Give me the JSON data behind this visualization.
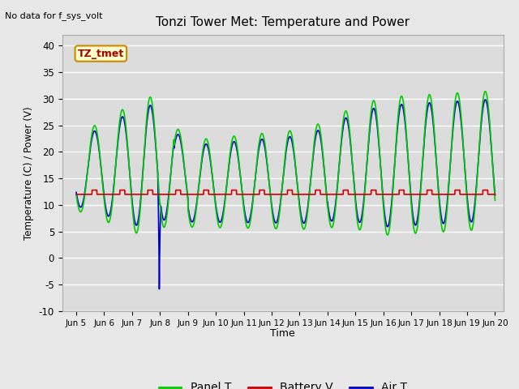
{
  "title": "Tonzi Tower Met: Temperature and Power",
  "ylabel": "Temperature (C) / Power (V)",
  "xlabel": "Time",
  "no_data_text": "No data for f_sys_volt",
  "annotation_text": "TZ_tmet",
  "ylim": [
    -10,
    42
  ],
  "xlim": [
    4.5,
    20.3
  ],
  "xticks": [
    5,
    6,
    7,
    8,
    9,
    10,
    11,
    12,
    13,
    14,
    15,
    16,
    17,
    18,
    19,
    20
  ],
  "xticklabels": [
    "Jun 5",
    "Jun 6",
    "Jun 7",
    "Jun 8",
    "Jun 9",
    "Jun 10",
    "Jun 11",
    "Jun 12",
    "Jun 13",
    "Jun 14",
    "Jun 15",
    "Jun 16",
    "Jun 17",
    "Jun 18",
    "Jun 19",
    "Jun 20"
  ],
  "yticks": [
    -10,
    -5,
    0,
    5,
    10,
    15,
    20,
    25,
    30,
    35,
    40
  ],
  "bg_color": "#dcdcdc",
  "fig_color": "#e8e8e8",
  "green_color": "#00cc00",
  "red_color": "#cc0000",
  "blue_color": "#0000cc",
  "linewidth": 1.2,
  "legend_items": [
    "Panel T",
    "Battery V",
    "Air T"
  ],
  "legend_colors": [
    "#00cc00",
    "#cc0000",
    "#0000cc"
  ]
}
